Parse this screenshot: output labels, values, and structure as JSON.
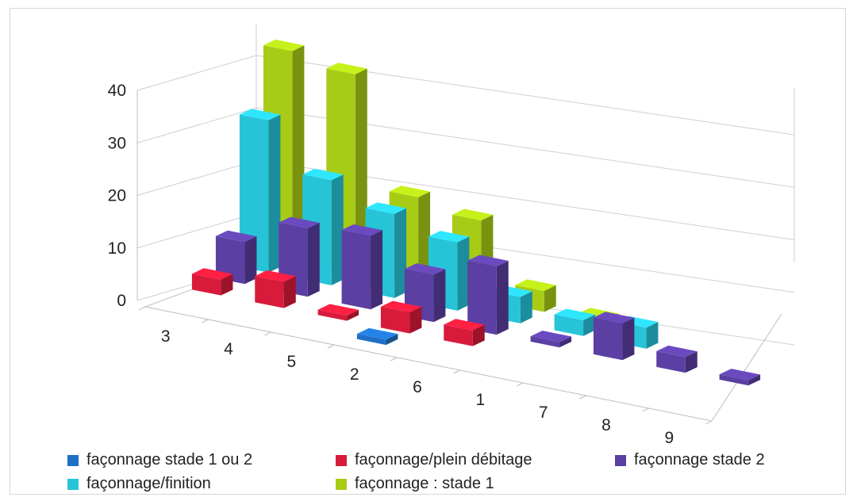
{
  "chart_data": {
    "type": "bar",
    "title": "",
    "xlabel": "",
    "ylabel": "",
    "ylim": [
      0,
      40
    ],
    "yticks": [
      0,
      10,
      20,
      30,
      40
    ],
    "grid": true,
    "legend_position": "bottom",
    "categories": [
      "3",
      "4",
      "5",
      "2",
      "6",
      "1",
      "7",
      "8",
      "9"
    ],
    "series": [
      {
        "name": "façonnage stade 1 ou 2",
        "color": "#1f6fc5",
        "values": [
          0,
          0,
          0,
          1,
          0,
          0,
          0,
          0,
          0
        ]
      },
      {
        "name": "façonnage/plein débitage",
        "color": "#d81b3a",
        "values": [
          3,
          5,
          1,
          4,
          3,
          0,
          0,
          0,
          0
        ]
      },
      {
        "name": "façonnage stade 2",
        "color": "#5b3fa3",
        "values": [
          8,
          13,
          14,
          9,
          13,
          1,
          7,
          3,
          1
        ]
      },
      {
        "name": "façonnage/finition",
        "color": "#27c4d8",
        "values": [
          29,
          20,
          16,
          13,
          5,
          3,
          4,
          0,
          0
        ]
      },
      {
        "name": "façonnage : stade 1",
        "color": "#a8cc16",
        "values": [
          40,
          38,
          17,
          15,
          4,
          1,
          0,
          0,
          0
        ]
      }
    ]
  }
}
